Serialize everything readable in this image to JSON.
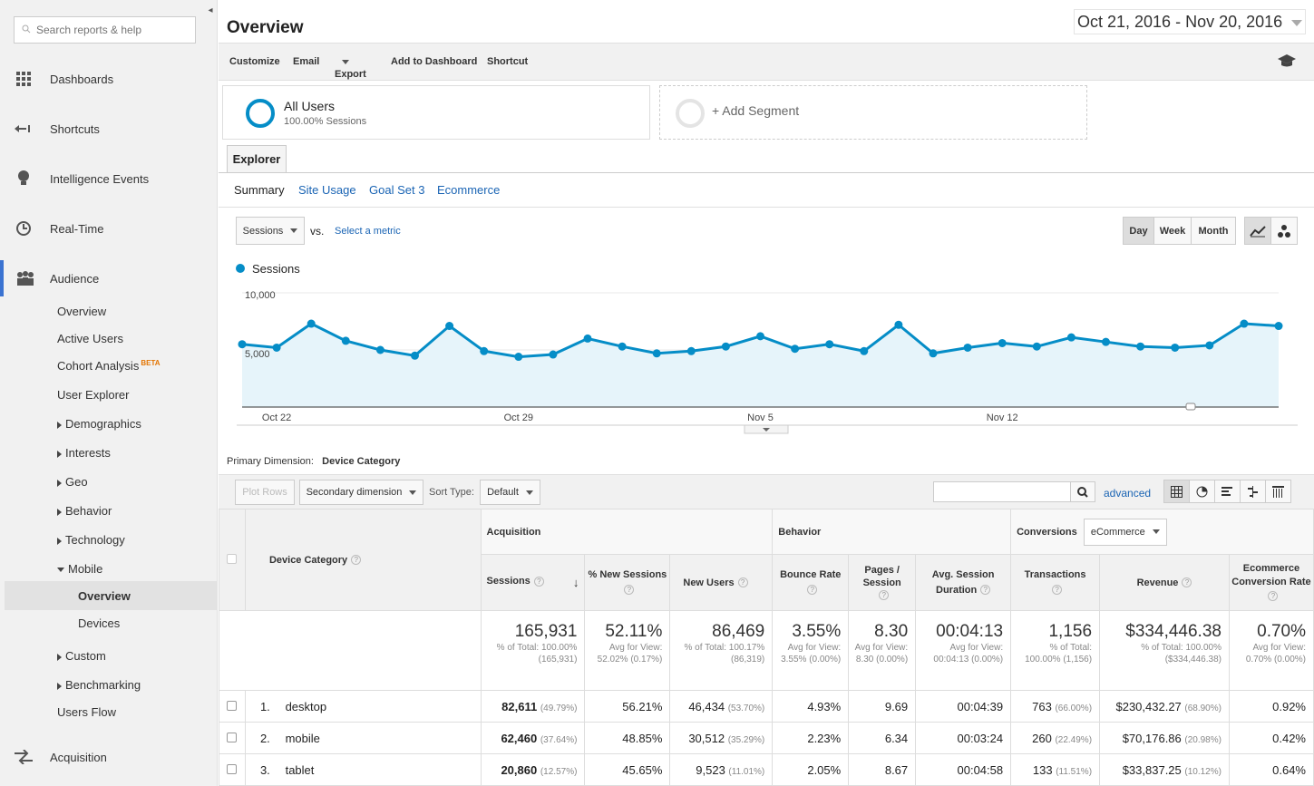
{
  "sidebar": {
    "search_placeholder": "Search reports & help",
    "items": [
      {
        "label": "Dashboards"
      },
      {
        "label": "Shortcuts"
      },
      {
        "label": "Intelligence Events"
      },
      {
        "label": "Real-Time"
      },
      {
        "label": "Audience"
      }
    ],
    "audience_sub": [
      "Overview",
      "Active Users",
      "Cohort Analysis",
      "User Explorer",
      "Demographics",
      "Interests",
      "Geo",
      "Behavior",
      "Technology",
      "Mobile"
    ],
    "beta": "BETA",
    "mobile_sub": [
      "Overview",
      "Devices"
    ],
    "more_sub": [
      "Custom",
      "Benchmarking",
      "Users Flow"
    ],
    "acquisition": "Acquisition"
  },
  "header": {
    "title": "Overview",
    "date_range": "Oct 21, 2016 - Nov 20, 2016"
  },
  "toolbar": {
    "customize": "Customize",
    "email": "Email",
    "export": "Export",
    "add_dashboard": "Add to Dashboard",
    "shortcut": "Shortcut"
  },
  "segments": {
    "all_users": "All Users",
    "all_users_sub": "100.00% Sessions",
    "add_segment": "+ Add Segment"
  },
  "explorer": {
    "tab": "Explorer",
    "subtabs": [
      "Summary",
      "Site Usage",
      "Goal Set 3",
      "Ecommerce"
    ],
    "metric": "Sessions",
    "vs": "vs.",
    "select_metric": "Select a metric",
    "periods": [
      "Day",
      "Week",
      "Month"
    ]
  },
  "chart_data": {
    "type": "area",
    "series": [
      {
        "name": "Sessions",
        "values": [
          5500,
          5200,
          7300,
          5800,
          5000,
          4500,
          7100,
          4900,
          4400,
          4600,
          6000,
          5300,
          4700,
          4900,
          5300,
          6200,
          5100,
          5500,
          4900,
          7200,
          4700,
          5200,
          5600,
          5300,
          6100,
          5700,
          5300,
          5200,
          5400,
          7300,
          7100
        ]
      }
    ],
    "x_ticks": [
      "Oct 22",
      "Oct 29",
      "Nov 5",
      "Nov 12"
    ],
    "y_ticks": [
      "10,000",
      "5,000"
    ],
    "ylim": [
      0,
      10000
    ],
    "color": "#058dc7"
  },
  "table_controls": {
    "primary_label": "Primary Dimension:",
    "primary_value": "Device Category",
    "plot_rows": "Plot Rows",
    "secondary": "Secondary dimension",
    "sort_label": "Sort Type:",
    "sort_value": "Default",
    "advanced": "advanced"
  },
  "table": {
    "groups": {
      "acquisition": "Acquisition",
      "behavior": "Behavior",
      "conversions": "Conversions",
      "conv_select": "eCommerce"
    },
    "dim_header": "Device Category",
    "columns": [
      "Sessions",
      "% New Sessions",
      "New Users",
      "Bounce Rate",
      "Pages / Session",
      "Avg. Session Duration",
      "Transactions",
      "Revenue",
      "Ecommerce Conversion Rate"
    ],
    "totals": [
      {
        "value": "165,931",
        "sub": "% of Total: 100.00% (165,931)"
      },
      {
        "value": "52.11%",
        "sub": "Avg for View: 52.02% (0.17%)"
      },
      {
        "value": "86,469",
        "sub": "% of Total: 100.17% (86,319)"
      },
      {
        "value": "3.55%",
        "sub": "Avg for View: 3.55% (0.00%)"
      },
      {
        "value": "8.30",
        "sub": "Avg for View: 8.30 (0.00%)"
      },
      {
        "value": "00:04:13",
        "sub": "Avg for View: 00:04:13 (0.00%)"
      },
      {
        "value": "1,156",
        "sub": "% of Total: 100.00% (1,156)"
      },
      {
        "value": "$334,446.38",
        "sub": "% of Total: 100.00% ($334,446.38)"
      },
      {
        "value": "0.70%",
        "sub": "Avg for View: 0.70% (0.00%)"
      }
    ],
    "rows": [
      {
        "idx": "1.",
        "name": "desktop",
        "sessions": "82,611",
        "sessions_pct": "(49.79%)",
        "new_sess": "56.21%",
        "new_users": "46,434",
        "new_users_pct": "(53.70%)",
        "bounce": "4.93%",
        "pages": "9.69",
        "dur": "00:04:39",
        "trans": "763",
        "trans_pct": "(66.00%)",
        "rev": "$230,432.27",
        "rev_pct": "(68.90%)",
        "conv": "0.92%"
      },
      {
        "idx": "2.",
        "name": "mobile",
        "sessions": "62,460",
        "sessions_pct": "(37.64%)",
        "new_sess": "48.85%",
        "new_users": "30,512",
        "new_users_pct": "(35.29%)",
        "bounce": "2.23%",
        "pages": "6.34",
        "dur": "00:03:24",
        "trans": "260",
        "trans_pct": "(22.49%)",
        "rev": "$70,176.86",
        "rev_pct": "(20.98%)",
        "conv": "0.42%"
      },
      {
        "idx": "3.",
        "name": "tablet",
        "sessions": "20,860",
        "sessions_pct": "(12.57%)",
        "new_sess": "45.65%",
        "new_users": "9,523",
        "new_users_pct": "(11.01%)",
        "bounce": "2.05%",
        "pages": "8.67",
        "dur": "00:04:58",
        "trans": "133",
        "trans_pct": "(11.51%)",
        "rev": "$33,837.25",
        "rev_pct": "(10.12%)",
        "conv": "0.64%"
      }
    ]
  }
}
